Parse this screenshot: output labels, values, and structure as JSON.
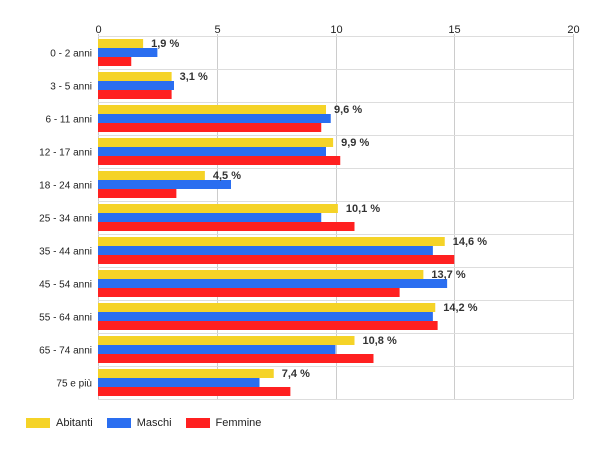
{
  "chart_data": {
    "type": "bar",
    "orientation": "horizontal",
    "categories": [
      "0 - 2 anni",
      "3 - 5 anni",
      "6 - 11 anni",
      "12 - 17 anni",
      "18 - 24 anni",
      "25 - 34 anni",
      "35 - 44 anni",
      "45 - 54 anni",
      "55 - 64 anni",
      "65 - 74 anni",
      "75 e più"
    ],
    "series": [
      {
        "name": "Abitanti",
        "color": "#f5d327",
        "values": [
          1.9,
          3.1,
          9.6,
          9.9,
          4.5,
          10.1,
          14.6,
          13.7,
          14.2,
          10.8,
          7.4
        ]
      },
      {
        "name": "Maschi",
        "color": "#2a6ef0",
        "values": [
          2.5,
          3.2,
          9.8,
          9.6,
          5.6,
          9.4,
          14.1,
          14.7,
          14.1,
          10.0,
          6.8
        ]
      },
      {
        "name": "Femmine",
        "color": "#ff2020",
        "values": [
          1.4,
          3.1,
          9.4,
          10.2,
          3.3,
          10.8,
          15.0,
          12.7,
          14.3,
          11.6,
          8.1
        ]
      }
    ],
    "data_labels": [
      "1,9 %",
      "3,1 %",
      "9,6 %",
      "9,9 %",
      "4,5 %",
      "10,1 %",
      "14,6 %",
      "13,7 %",
      "14,2 %",
      "10,8 %",
      "7,4 %"
    ],
    "x_ticks": [
      "0",
      "5",
      "10",
      "15",
      "20"
    ],
    "xlim": [
      0,
      20
    ],
    "grid": true,
    "legend_position": "bottom-left"
  }
}
